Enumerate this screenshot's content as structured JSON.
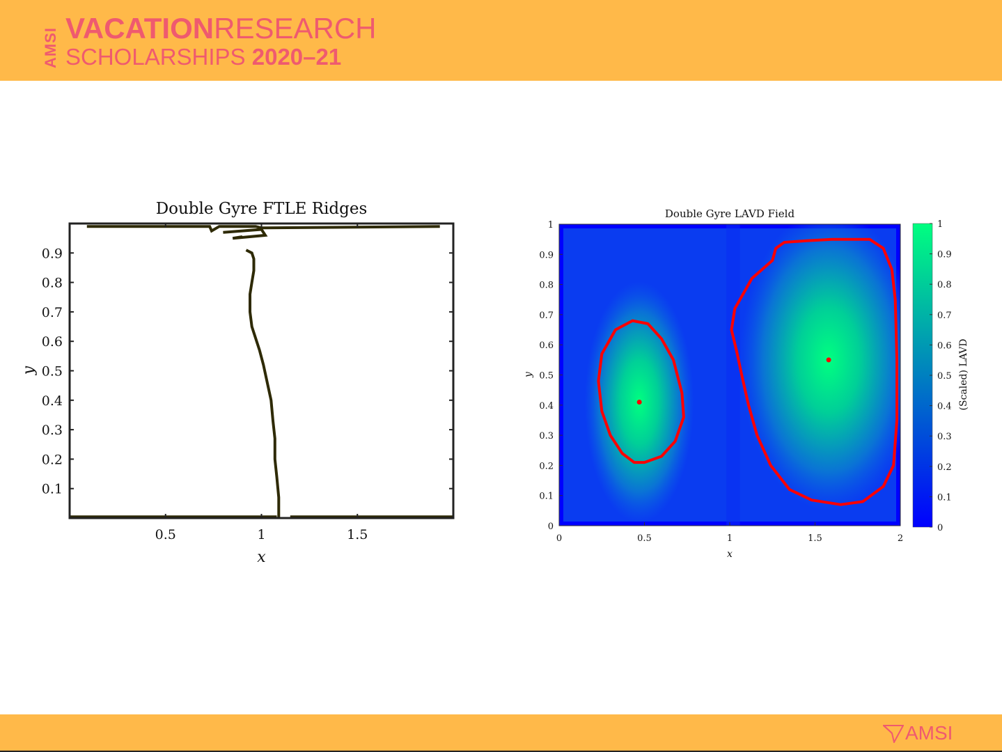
{
  "header": {
    "amsi_vertical": "AMSI",
    "line1_bold": "VACATION",
    "line1_regular": "RESEARCH",
    "line2_regular": "SCHOLARSHIPS",
    "line2_bold": "2020–21",
    "brand_color": "#ef5a6f",
    "band_color": "#ffb949"
  },
  "footer": {
    "logo_text": "AMSI"
  },
  "chart_data": [
    {
      "type": "line",
      "title": "Double Gyre FTLE Ridges",
      "xlabel": "x",
      "ylabel": "y",
      "xlim": [
        0,
        2
      ],
      "ylim": [
        0,
        1
      ],
      "xticks": [
        "0.5",
        "1",
        "1.5"
      ],
      "xtick_values": [
        0.5,
        1,
        1.5
      ],
      "yticks": [
        "0.1",
        "0.2",
        "0.3",
        "0.4",
        "0.5",
        "0.6",
        "0.7",
        "0.8",
        "0.9"
      ],
      "ytick_values": [
        0.1,
        0.2,
        0.3,
        0.4,
        0.5,
        0.6,
        0.7,
        0.8,
        0.9
      ],
      "grid": false,
      "color": "#2e2a05",
      "series": [
        {
          "points": [
            [
              1.09,
              0.0
            ],
            [
              1.09,
              0.07
            ],
            [
              1.08,
              0.14
            ],
            [
              1.07,
              0.2
            ],
            [
              1.07,
              0.27
            ],
            [
              1.06,
              0.33
            ],
            [
              1.05,
              0.4
            ],
            [
              1.03,
              0.46
            ],
            [
              1.01,
              0.52
            ],
            [
              0.99,
              0.57
            ],
            [
              0.97,
              0.61
            ],
            [
              0.95,
              0.65
            ],
            [
              0.94,
              0.7
            ],
            [
              0.94,
              0.76
            ],
            [
              0.95,
              0.8
            ],
            [
              0.96,
              0.84
            ],
            [
              0.96,
              0.88
            ],
            [
              0.95,
              0.9
            ],
            [
              0.92,
              0.91
            ]
          ]
        },
        {
          "points": [
            [
              0.0,
              0.004
            ],
            [
              0.72,
              0.004
            ],
            [
              1.02,
              0.004
            ],
            [
              1.08,
              0.004
            ]
          ]
        },
        {
          "points": [
            [
              1.15,
              0.004
            ],
            [
              2.0,
              0.004
            ]
          ]
        },
        {
          "points": [
            [
              0.09,
              0.99
            ],
            [
              0.73,
              0.99
            ],
            [
              0.74,
              0.975
            ],
            [
              0.78,
              0.99
            ],
            [
              0.97,
              0.99
            ],
            [
              1.0,
              0.985
            ],
            [
              1.93,
              0.99
            ]
          ]
        },
        {
          "points": [
            [
              0.8,
              0.97
            ],
            [
              1.0,
              0.98
            ],
            [
              1.02,
              0.96
            ],
            [
              0.85,
              0.95
            ],
            [
              0.9,
              0.955
            ]
          ]
        }
      ]
    },
    {
      "type": "heatmap",
      "title": "Double Gyre LAVD Field",
      "xlabel": "x",
      "ylabel": "y",
      "xlim": [
        0,
        2
      ],
      "ylim": [
        0,
        1
      ],
      "xticks": [
        "0",
        "0.5",
        "1",
        "1.5",
        "2"
      ],
      "xtick_values": [
        0,
        0.5,
        1,
        1.5,
        2
      ],
      "yticks": [
        "0",
        "0.1",
        "0.2",
        "0.3",
        "0.4",
        "0.5",
        "0.6",
        "0.7",
        "0.8",
        "0.9",
        "1"
      ],
      "ytick_values": [
        0,
        0.1,
        0.2,
        0.3,
        0.4,
        0.5,
        0.6,
        0.7,
        0.8,
        0.9,
        1
      ],
      "colorbar": {
        "label": "(Scaled) LAVD",
        "range": [
          0,
          1
        ],
        "ticks": [
          "0",
          "0.1",
          "0.2",
          "0.3",
          "0.4",
          "0.5",
          "0.6",
          "0.7",
          "0.8",
          "0.9",
          "1"
        ],
        "tick_values": [
          0,
          0.1,
          0.2,
          0.3,
          0.4,
          0.5,
          0.6,
          0.7,
          0.8,
          0.9,
          1
        ],
        "low_color": "#0000ff",
        "high_color": "#00ff80"
      },
      "vortex_centers": [
        [
          0.47,
          0.41
        ],
        [
          1.58,
          0.55
        ]
      ],
      "boundary_color": "#ff0000",
      "vortex_boundaries": [
        {
          "points": [
            [
              0.5,
              0.21
            ],
            [
              0.6,
              0.23
            ],
            [
              0.68,
              0.28
            ],
            [
              0.73,
              0.36
            ],
            [
              0.72,
              0.44
            ],
            [
              0.67,
              0.55
            ],
            [
              0.6,
              0.62
            ],
            [
              0.52,
              0.67
            ],
            [
              0.43,
              0.68
            ],
            [
              0.33,
              0.65
            ],
            [
              0.25,
              0.57
            ],
            [
              0.23,
              0.48
            ],
            [
              0.25,
              0.38
            ],
            [
              0.3,
              0.3
            ],
            [
              0.37,
              0.24
            ],
            [
              0.44,
              0.21
            ],
            [
              0.5,
              0.21
            ]
          ]
        },
        {
          "points": [
            [
              1.65,
              0.07
            ],
            [
              1.78,
              0.08
            ],
            [
              1.9,
              0.13
            ],
            [
              1.96,
              0.2
            ],
            [
              1.98,
              0.35
            ],
            [
              1.98,
              0.55
            ],
            [
              1.97,
              0.75
            ],
            [
              1.95,
              0.85
            ],
            [
              1.9,
              0.92
            ],
            [
              1.82,
              0.95
            ],
            [
              1.6,
              0.95
            ],
            [
              1.45,
              0.945
            ],
            [
              1.32,
              0.94
            ],
            [
              1.27,
              0.92
            ],
            [
              1.25,
              0.88
            ],
            [
              1.13,
              0.82
            ],
            [
              1.09,
              0.78
            ],
            [
              1.03,
              0.72
            ],
            [
              1.01,
              0.65
            ],
            [
              1.04,
              0.58
            ],
            [
              1.07,
              0.5
            ],
            [
              1.11,
              0.4
            ],
            [
              1.16,
              0.3
            ],
            [
              1.24,
              0.2
            ],
            [
              1.35,
              0.12
            ],
            [
              1.48,
              0.085
            ],
            [
              1.65,
              0.07
            ]
          ]
        }
      ]
    }
  ]
}
